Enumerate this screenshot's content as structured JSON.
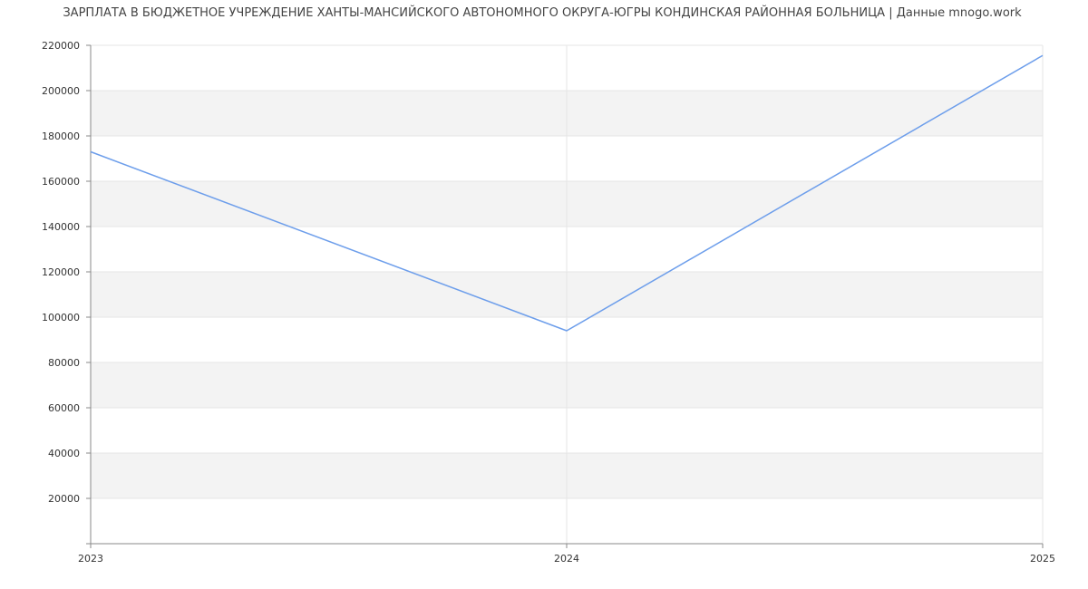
{
  "chart_data": {
    "type": "line",
    "title": "ЗАРПЛАТА В БЮДЖЕТНОЕ УЧРЕЖДЕНИЕ ХАНТЫ-МАНСИЙСКОГО АВТОНОМНОГО ОКРУГА-ЮГРЫ КОНДИНСКАЯ РАЙОННАЯ БОЛЬНИЦА | Данные mnogo.work",
    "x": [
      "2023",
      "2024",
      "2025"
    ],
    "series": [
      {
        "values": [
          173000,
          94000,
          215500
        ]
      }
    ],
    "ylim": [
      0,
      220000
    ],
    "yticks": [
      20000,
      40000,
      60000,
      80000,
      100000,
      120000,
      140000,
      160000,
      180000,
      200000,
      220000
    ],
    "ytick_labels": [
      "20000",
      "40000",
      "60000",
      "80000",
      "100000",
      "120000",
      "140000",
      "160000",
      "180000",
      "200000",
      "220000"
    ],
    "grid": true,
    "line_color": "#6d9eeb",
    "band_color": "#f3f3f3",
    "grid_color": "#e5e5e5",
    "axis_color": "#888888"
  }
}
